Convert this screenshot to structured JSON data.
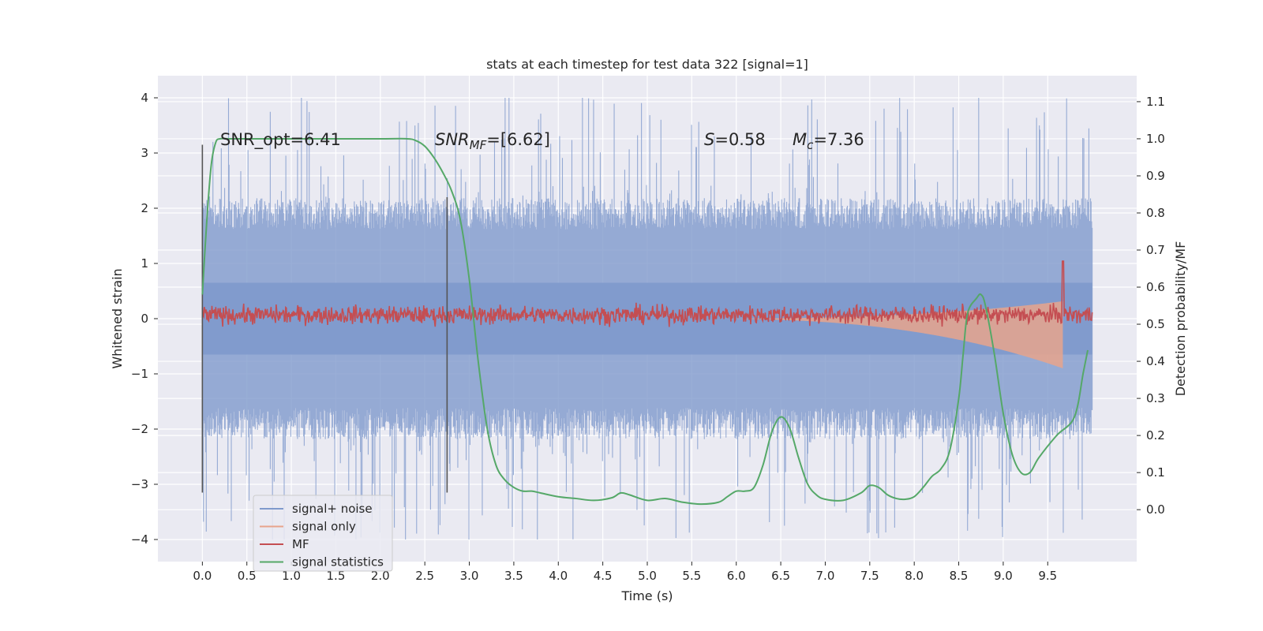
{
  "chart_data": {
    "type": "line",
    "title": "stats at each timestep for test data 322 [signal=1]",
    "xlabel": "Time (s)",
    "ylabel": "Whitened strain",
    "y2label": "Detection probability/MF",
    "xlim": [
      -0.5,
      10.5
    ],
    "ylim": [
      -4.4,
      4.4
    ],
    "y2lim": [
      -0.14,
      1.17
    ],
    "x_ticks": [
      "0.0",
      "0.5",
      "1.0",
      "1.5",
      "2.0",
      "2.5",
      "3.0",
      "3.5",
      "4.0",
      "4.5",
      "5.0",
      "5.5",
      "6.0",
      "6.5",
      "7.0",
      "7.5",
      "8.0",
      "8.5",
      "9.0",
      "9.5"
    ],
    "x_tick_values": [
      0,
      0.5,
      1,
      1.5,
      2,
      2.5,
      3,
      3.5,
      4,
      4.5,
      5,
      5.5,
      6,
      6.5,
      7,
      7.5,
      8,
      8.5,
      9,
      9.5
    ],
    "y_ticks": [
      "−4",
      "−3",
      "−2",
      "−1",
      "0",
      "1",
      "2",
      "3",
      "4"
    ],
    "y_tick_values": [
      -4,
      -3,
      -2,
      -1,
      0,
      1,
      2,
      3,
      4
    ],
    "y2_ticks": [
      "0.0",
      "0.1",
      "0.2",
      "0.3",
      "0.4",
      "0.5",
      "0.6",
      "0.7",
      "0.8",
      "0.9",
      "1.0",
      "1.1"
    ],
    "y2_tick_values": [
      0,
      0.1,
      0.2,
      0.3,
      0.4,
      0.5,
      0.6,
      0.7,
      0.8,
      0.9,
      1.0,
      1.1
    ],
    "grid": true,
    "legend_position": "lower-left",
    "annotations": {
      "snr_opt": "SNR_opt=6.41",
      "snr_mf_prefix": "SNR",
      "snr_mf_sub": "MF",
      "snr_mf_value": "=[6.62]",
      "s_symbol": "S",
      "s_value": "=0.58",
      "mc_symbol": "M",
      "mc_sub": "c",
      "mc_value": "=7.36"
    },
    "vertical_lines": [
      {
        "x": 0.0,
        "y_range": [
          -3.15,
          3.15
        ]
      },
      {
        "x": 2.75,
        "y_range": [
          -3.15,
          2.2
        ]
      }
    ],
    "series": [
      {
        "name": "signal+ noise",
        "color": "#7f9acc",
        "kind": "noise",
        "x_range": [
          0,
          10
        ],
        "typical_range": [
          -1.9,
          1.9
        ],
        "peak_range": [
          -4.0,
          4.0
        ]
      },
      {
        "name": "signal only",
        "color": "#e8a48c",
        "kind": "chirp",
        "x_range": [
          5.5,
          9.67
        ],
        "max_amplitude": 0.9
      },
      {
        "name": "MF",
        "color": "#c44e52",
        "kind": "noise",
        "axis": "y2",
        "x_range": [
          0,
          10
        ],
        "typical_range": [
          0.5,
          0.55
        ],
        "peak_value": 0.67,
        "peak_x": 9.67
      },
      {
        "name": "signal statistics",
        "color": "#55a868",
        "axis": "y2",
        "x": [
          0.0,
          0.05,
          0.1,
          0.15,
          0.2,
          0.3,
          0.5,
          1.0,
          1.5,
          2.0,
          2.3,
          2.4,
          2.5,
          2.6,
          2.7,
          2.8,
          2.9,
          3.0,
          3.1,
          3.2,
          3.3,
          3.4,
          3.5,
          3.6,
          3.7,
          3.8,
          4.0,
          4.2,
          4.4,
          4.6,
          4.7,
          4.8,
          5.0,
          5.2,
          5.4,
          5.6,
          5.8,
          5.9,
          6.0,
          6.1,
          6.2,
          6.3,
          6.4,
          6.5,
          6.6,
          6.7,
          6.8,
          6.9,
          7.0,
          7.2,
          7.4,
          7.5,
          7.6,
          7.7,
          7.8,
          7.9,
          8.0,
          8.1,
          8.2,
          8.3,
          8.4,
          8.5,
          8.55,
          8.6,
          8.7,
          8.75,
          8.8,
          8.9,
          9.0,
          9.1,
          9.2,
          9.3,
          9.4,
          9.6,
          9.8,
          9.9,
          9.95
        ],
        "y": [
          0.58,
          0.78,
          0.93,
          0.99,
          1.0,
          1.0,
          1.0,
          1.0,
          1.0,
          1.0,
          1.0,
          0.995,
          0.98,
          0.95,
          0.91,
          0.86,
          0.78,
          0.62,
          0.4,
          0.22,
          0.12,
          0.08,
          0.06,
          0.05,
          0.05,
          0.045,
          0.035,
          0.03,
          0.025,
          0.032,
          0.045,
          0.04,
          0.025,
          0.03,
          0.02,
          0.015,
          0.02,
          0.035,
          0.05,
          0.05,
          0.06,
          0.12,
          0.21,
          0.25,
          0.22,
          0.14,
          0.07,
          0.04,
          0.028,
          0.025,
          0.045,
          0.065,
          0.06,
          0.04,
          0.03,
          0.028,
          0.035,
          0.06,
          0.09,
          0.11,
          0.16,
          0.3,
          0.42,
          0.53,
          0.57,
          0.58,
          0.55,
          0.42,
          0.26,
          0.15,
          0.1,
          0.1,
          0.14,
          0.2,
          0.25,
          0.37,
          0.43
        ]
      }
    ]
  }
}
